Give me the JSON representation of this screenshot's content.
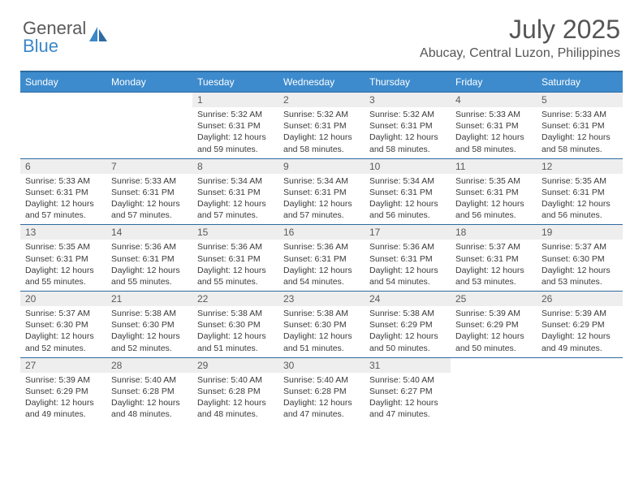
{
  "logo": {
    "line1": "General",
    "line2": "Blue"
  },
  "title": "July 2025",
  "location": "Abucay, Central Luzon, Philippines",
  "colors": {
    "header_bg": "#3d8bcd",
    "header_border": "#2f6aa0",
    "daynum_bg": "#eeeeee",
    "text": "#555555",
    "logo_gray": "#5a5a5a",
    "logo_blue": "#3b87c8"
  },
  "weekdays": [
    "Sunday",
    "Monday",
    "Tuesday",
    "Wednesday",
    "Thursday",
    "Friday",
    "Saturday"
  ],
  "weeks": [
    [
      null,
      null,
      {
        "n": "1",
        "sr": "5:32 AM",
        "ss": "6:31 PM",
        "dl": "12 hours and 59 minutes."
      },
      {
        "n": "2",
        "sr": "5:32 AM",
        "ss": "6:31 PM",
        "dl": "12 hours and 58 minutes."
      },
      {
        "n": "3",
        "sr": "5:32 AM",
        "ss": "6:31 PM",
        "dl": "12 hours and 58 minutes."
      },
      {
        "n": "4",
        "sr": "5:33 AM",
        "ss": "6:31 PM",
        "dl": "12 hours and 58 minutes."
      },
      {
        "n": "5",
        "sr": "5:33 AM",
        "ss": "6:31 PM",
        "dl": "12 hours and 58 minutes."
      }
    ],
    [
      {
        "n": "6",
        "sr": "5:33 AM",
        "ss": "6:31 PM",
        "dl": "12 hours and 57 minutes."
      },
      {
        "n": "7",
        "sr": "5:33 AM",
        "ss": "6:31 PM",
        "dl": "12 hours and 57 minutes."
      },
      {
        "n": "8",
        "sr": "5:34 AM",
        "ss": "6:31 PM",
        "dl": "12 hours and 57 minutes."
      },
      {
        "n": "9",
        "sr": "5:34 AM",
        "ss": "6:31 PM",
        "dl": "12 hours and 57 minutes."
      },
      {
        "n": "10",
        "sr": "5:34 AM",
        "ss": "6:31 PM",
        "dl": "12 hours and 56 minutes."
      },
      {
        "n": "11",
        "sr": "5:35 AM",
        "ss": "6:31 PM",
        "dl": "12 hours and 56 minutes."
      },
      {
        "n": "12",
        "sr": "5:35 AM",
        "ss": "6:31 PM",
        "dl": "12 hours and 56 minutes."
      }
    ],
    [
      {
        "n": "13",
        "sr": "5:35 AM",
        "ss": "6:31 PM",
        "dl": "12 hours and 55 minutes."
      },
      {
        "n": "14",
        "sr": "5:36 AM",
        "ss": "6:31 PM",
        "dl": "12 hours and 55 minutes."
      },
      {
        "n": "15",
        "sr": "5:36 AM",
        "ss": "6:31 PM",
        "dl": "12 hours and 55 minutes."
      },
      {
        "n": "16",
        "sr": "5:36 AM",
        "ss": "6:31 PM",
        "dl": "12 hours and 54 minutes."
      },
      {
        "n": "17",
        "sr": "5:36 AM",
        "ss": "6:31 PM",
        "dl": "12 hours and 54 minutes."
      },
      {
        "n": "18",
        "sr": "5:37 AM",
        "ss": "6:31 PM",
        "dl": "12 hours and 53 minutes."
      },
      {
        "n": "19",
        "sr": "5:37 AM",
        "ss": "6:30 PM",
        "dl": "12 hours and 53 minutes."
      }
    ],
    [
      {
        "n": "20",
        "sr": "5:37 AM",
        "ss": "6:30 PM",
        "dl": "12 hours and 52 minutes."
      },
      {
        "n": "21",
        "sr": "5:38 AM",
        "ss": "6:30 PM",
        "dl": "12 hours and 52 minutes."
      },
      {
        "n": "22",
        "sr": "5:38 AM",
        "ss": "6:30 PM",
        "dl": "12 hours and 51 minutes."
      },
      {
        "n": "23",
        "sr": "5:38 AM",
        "ss": "6:30 PM",
        "dl": "12 hours and 51 minutes."
      },
      {
        "n": "24",
        "sr": "5:38 AM",
        "ss": "6:29 PM",
        "dl": "12 hours and 50 minutes."
      },
      {
        "n": "25",
        "sr": "5:39 AM",
        "ss": "6:29 PM",
        "dl": "12 hours and 50 minutes."
      },
      {
        "n": "26",
        "sr": "5:39 AM",
        "ss": "6:29 PM",
        "dl": "12 hours and 49 minutes."
      }
    ],
    [
      {
        "n": "27",
        "sr": "5:39 AM",
        "ss": "6:29 PM",
        "dl": "12 hours and 49 minutes."
      },
      {
        "n": "28",
        "sr": "5:40 AM",
        "ss": "6:28 PM",
        "dl": "12 hours and 48 minutes."
      },
      {
        "n": "29",
        "sr": "5:40 AM",
        "ss": "6:28 PM",
        "dl": "12 hours and 48 minutes."
      },
      {
        "n": "30",
        "sr": "5:40 AM",
        "ss": "6:28 PM",
        "dl": "12 hours and 47 minutes."
      },
      {
        "n": "31",
        "sr": "5:40 AM",
        "ss": "6:27 PM",
        "dl": "12 hours and 47 minutes."
      },
      null,
      null
    ]
  ],
  "labels": {
    "sunrise": "Sunrise:",
    "sunset": "Sunset:",
    "daylight": "Daylight:"
  }
}
